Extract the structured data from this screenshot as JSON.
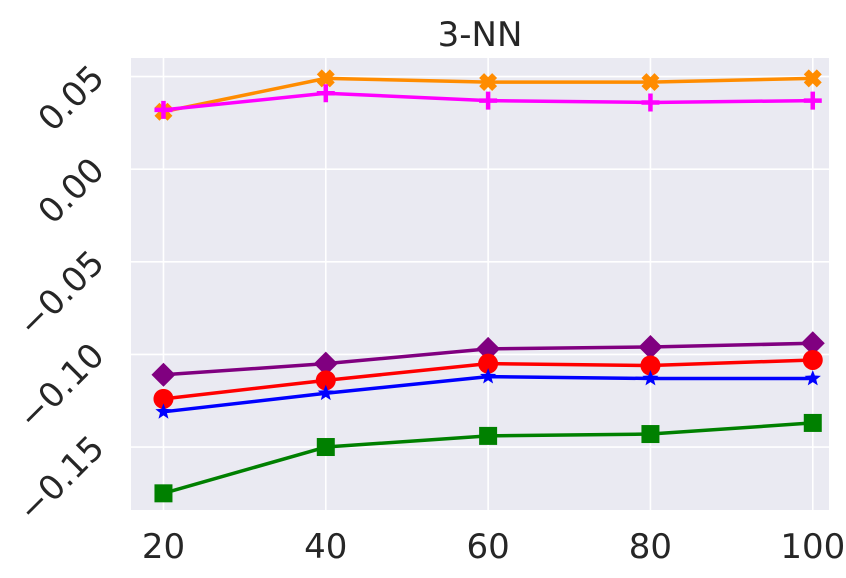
{
  "chart_data": {
    "type": "line",
    "title": "3-NN",
    "xlabel": "",
    "ylabel": "",
    "x": [
      20,
      40,
      60,
      80,
      100
    ],
    "x_ticks": [
      "20",
      "40",
      "60",
      "80",
      "100"
    ],
    "y_ticks": [
      "−0.15",
      "−0.10",
      "−0.05",
      "0.00",
      "0.05"
    ],
    "y_tick_values": [
      -0.15,
      -0.1,
      -0.05,
      0.0,
      0.05
    ],
    "xlim": [
      16,
      102
    ],
    "ylim": [
      -0.184,
      0.06
    ],
    "grid": true,
    "background": "#eaeaf2",
    "series": [
      {
        "color": "#ff8c00",
        "marker": "x",
        "values": [
          0.031,
          0.049,
          0.047,
          0.047,
          0.049
        ]
      },
      {
        "color": "#ff00ff",
        "marker": "plus",
        "values": [
          0.032,
          0.041,
          0.037,
          0.036,
          0.037
        ]
      },
      {
        "color": "#800080",
        "marker": "diamond",
        "values": [
          -0.111,
          -0.105,
          -0.097,
          -0.096,
          -0.094
        ]
      },
      {
        "color": "#ff0000",
        "marker": "circle",
        "values": [
          -0.124,
          -0.114,
          -0.105,
          -0.106,
          -0.103
        ]
      },
      {
        "color": "#0000ff",
        "marker": "star",
        "values": [
          -0.131,
          -0.121,
          -0.112,
          -0.113,
          -0.113
        ]
      },
      {
        "color": "#008000",
        "marker": "square",
        "values": [
          -0.175,
          -0.15,
          -0.144,
          -0.143,
          -0.137
        ]
      }
    ]
  }
}
